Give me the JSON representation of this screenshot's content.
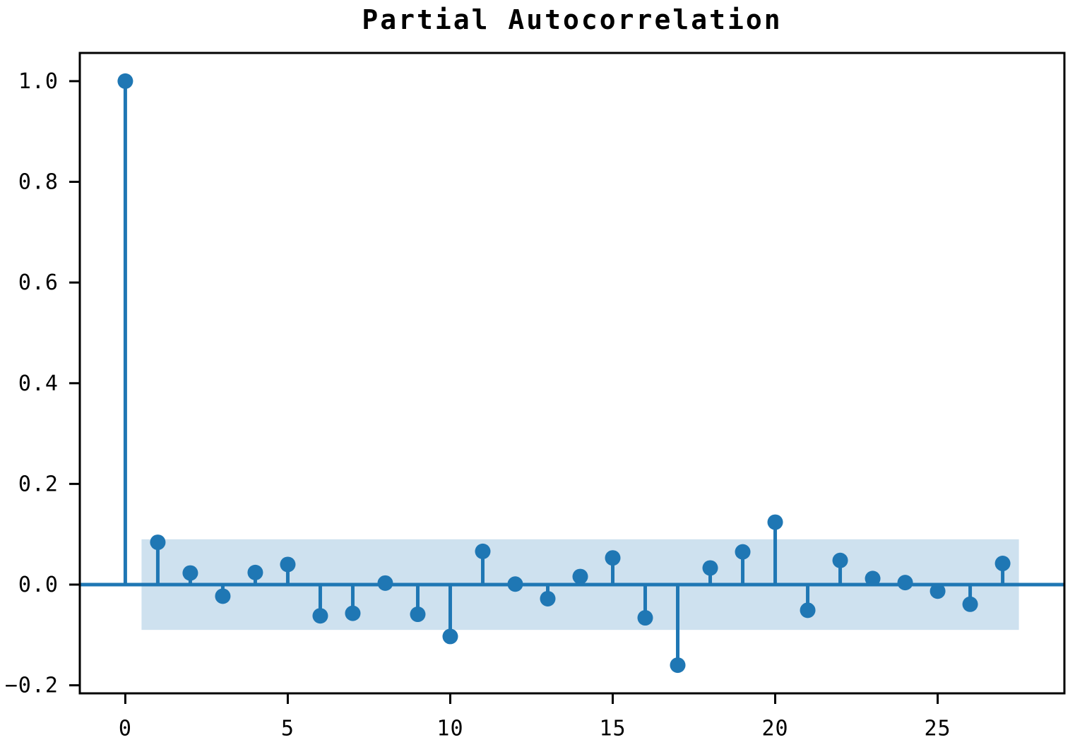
{
  "chart_data": {
    "type": "stem",
    "title": "Partial Autocorrelation",
    "xlabel": "",
    "ylabel": "",
    "x": [
      0,
      1,
      2,
      3,
      4,
      5,
      6,
      7,
      8,
      9,
      10,
      11,
      12,
      13,
      14,
      15,
      16,
      17,
      18,
      19,
      20,
      21,
      22,
      23,
      24,
      25,
      26,
      27
    ],
    "values": [
      1.0,
      0.084,
      0.023,
      -0.023,
      0.024,
      0.04,
      -0.062,
      -0.057,
      0.003,
      -0.059,
      -0.103,
      0.066,
      0.001,
      -0.028,
      0.016,
      0.053,
      -0.066,
      -0.16,
      0.033,
      0.065,
      0.124,
      -0.051,
      0.048,
      0.012,
      0.004,
      -0.013,
      -0.039,
      0.042
    ],
    "confidence_band": {
      "lower": -0.09,
      "upper": 0.09,
      "x_start": 0.5,
      "x_end": 27.5
    },
    "xlim": [
      -1.4,
      28.9
    ],
    "ylim": [
      -0.216,
      1.056
    ],
    "xticks": [
      0,
      5,
      10,
      15,
      20,
      25
    ],
    "xtick_labels": [
      "0",
      "5",
      "10",
      "15",
      "20",
      "25"
    ],
    "yticks": [
      -0.2,
      0.0,
      0.2,
      0.4,
      0.6,
      0.8,
      1.0
    ],
    "ytick_labels": [
      "−0.2",
      "0.0",
      "0.2",
      "0.4",
      "0.6",
      "0.8",
      "1.0"
    ],
    "grid": false,
    "legend": "none",
    "colors": {
      "stem": "#1f77b4",
      "marker": "#1f77b4",
      "zero_line": "#1f77b4",
      "band": "#1f77b4",
      "band_alpha": 0.22,
      "spine": "#000000",
      "background": "#ffffff"
    }
  }
}
